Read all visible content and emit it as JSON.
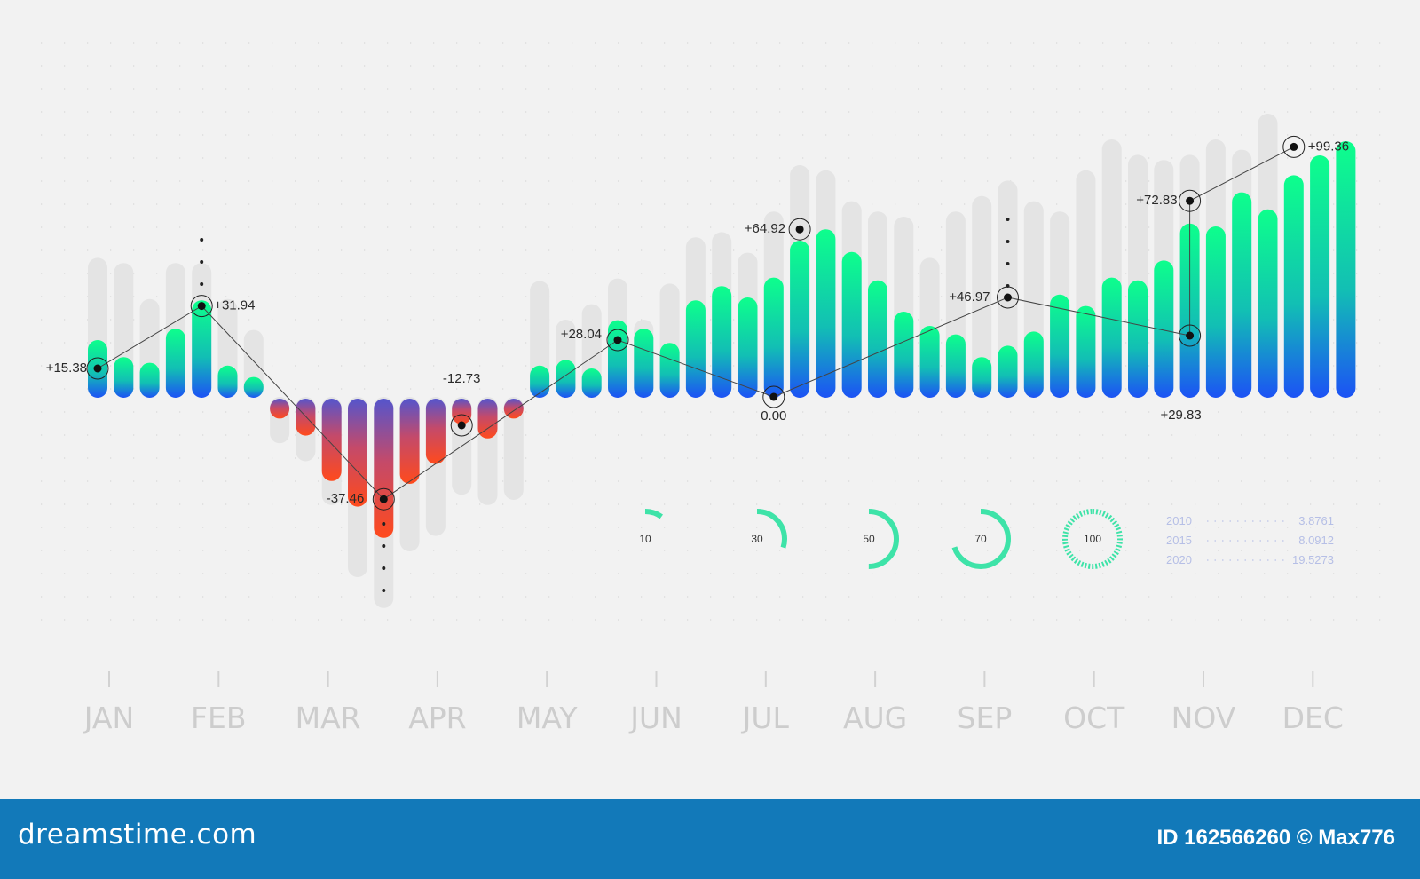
{
  "colors": {
    "background": "#f2f2f2",
    "green": "#0dff8c",
    "blue": "#1c52f5",
    "red": "#ff4a1c",
    "purple": "#5555cc",
    "ghost_bar": "#e4e4e4",
    "footer": "#1279b9",
    "gauge": "#3ee3a8"
  },
  "chart_data": {
    "type": "bar",
    "ylim": [
      -40,
      105
    ],
    "categories": [
      "JAN",
      "FEB",
      "MAR",
      "APR",
      "MAY",
      "JUN",
      "JUL",
      "AUG",
      "SEP",
      "OCT",
      "NOV",
      "DEC"
    ],
    "bars": [
      20,
      14,
      12,
      24,
      34,
      11,
      7,
      -7,
      -13,
      -29,
      -38,
      -49,
      -30,
      -23,
      -9,
      -14,
      -7,
      11,
      13,
      10,
      27,
      24,
      19,
      34,
      39,
      35,
      42,
      55,
      59,
      51,
      41,
      30,
      25,
      22,
      14,
      18,
      23,
      36,
      32,
      42,
      41,
      48,
      61,
      60,
      72,
      66,
      78,
      85,
      90
    ],
    "ghost_bars": [
      54,
      52,
      38,
      52,
      52,
      38,
      26,
      -18,
      -25,
      -42,
      -70,
      -82,
      -60,
      -54,
      -38,
      -42,
      -40,
      45,
      30,
      36,
      46,
      30,
      44,
      62,
      64,
      56,
      72,
      90,
      88,
      76,
      72,
      70,
      54,
      72,
      78,
      84,
      76,
      72,
      88,
      100,
      94,
      92,
      94,
      100,
      96,
      110
    ],
    "line_points": [
      {
        "label": "+15.38",
        "value": 10
      },
      {
        "label": "+31.94",
        "value": 32
      },
      {
        "label": "-37.46",
        "value": -36
      },
      {
        "label": "-12.73",
        "value": -10
      },
      {
        "label": "+28.04",
        "value": 20
      },
      {
        "label": "+64.92",
        "value": 59
      },
      {
        "label": "0.00",
        "value": 0
      },
      {
        "label": "+46.97",
        "value": 35
      },
      {
        "label": "+72.83",
        "value": 69
      },
      {
        "label": "+29.83",
        "value": 24
      },
      {
        "label": "+99.36",
        "value": 88
      }
    ],
    "line_order": [
      0,
      1,
      2,
      4,
      6,
      7,
      9,
      8,
      10
    ],
    "gauges": [
      10,
      30,
      50,
      70,
      100
    ],
    "legend": [
      {
        "year": "2010",
        "value": "3.8761"
      },
      {
        "year": "2015",
        "value": "8.0912"
      },
      {
        "year": "2020",
        "value": "19.5273"
      }
    ]
  },
  "footer": {
    "logo": "dreamstime.com",
    "id_text": "ID 162566260 © Max776"
  }
}
